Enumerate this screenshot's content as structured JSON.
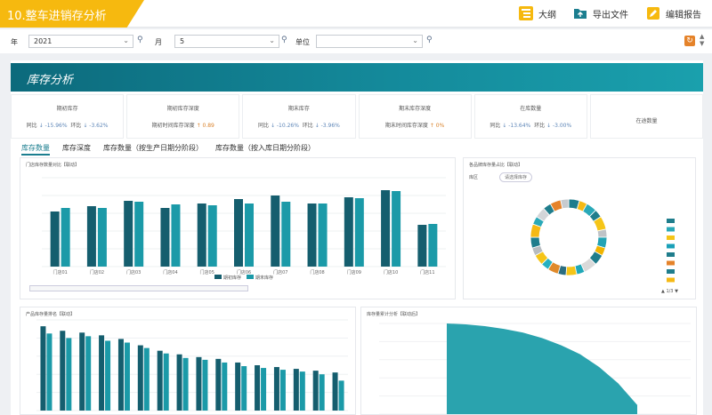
{
  "app": {
    "title": "10.整车进销存分析"
  },
  "toolbar": {
    "outline": "大纲",
    "export": "导出文件",
    "edit_report": "编辑报告"
  },
  "filters": {
    "year_label": "年",
    "year_value": "2021",
    "month_label": "月",
    "month_value": "5",
    "unit_label": "单位",
    "unit_value": ""
  },
  "section": {
    "title": "库存分析"
  },
  "kpis": [
    {
      "title": "期初库存",
      "yoy_label": "同比",
      "yoy": "↓ -15.96%",
      "mom_label": "环比",
      "mom": "↓ -3.62%"
    },
    {
      "title": "期初库存深度",
      "sub_label": "期初时间库存深度",
      "sub_value": "↑ 0.89"
    },
    {
      "title": "期末库存",
      "yoy_label": "同比",
      "yoy": "↓ -10.26%",
      "mom_label": "环比",
      "mom": "↓ -3.96%"
    },
    {
      "title": "期末库存深度",
      "sub_label": "期末时间库存深度",
      "sub_value": "↑ 0%"
    },
    {
      "title": "在库数量",
      "yoy_label": "同比",
      "yoy": "↓ -13.64%",
      "mom_label": "环比",
      "mom": "↓ -3.00%"
    },
    {
      "title": "在途数量"
    }
  ],
  "tabs": [
    "库存数量",
    "库存深度",
    "库存数量（按生产日期分阶段）",
    "库存数量（按入库日期分阶段）"
  ],
  "cards": {
    "store_bar": {
      "title": "门店库存数量对比【联动】"
    },
    "donut": {
      "title": "各品牌库存量占比【联动】",
      "filter_label": "库区",
      "filter_value": "请选择库存",
      "page": "1/3"
    },
    "product_bar": {
      "title": "产品库存量排名【联动】"
    },
    "area": {
      "title": "库存量累计分析【联动后】"
    }
  },
  "chart_data": [
    {
      "type": "bar",
      "title": "门店库存数量对比【联动】",
      "categories": [
        "门店01",
        "门店02",
        "门店03",
        "门店04",
        "门店05",
        "门店06",
        "门店07",
        "门店08",
        "门店09",
        "门店10",
        "门店11"
      ],
      "series": [
        {
          "name": "期初库存",
          "values": [
            62,
            68,
            74,
            66,
            71,
            76,
            80,
            71,
            78,
            86,
            47
          ]
        },
        {
          "name": "期末库存",
          "values": [
            66,
            66,
            73,
            70,
            69,
            71,
            73,
            71,
            77,
            85,
            48
          ]
        }
      ],
      "ylim": [
        0,
        100
      ]
    },
    {
      "type": "pie",
      "title": "各品牌库存量占比【联动】",
      "slices": [
        {
          "value": 4,
          "color": "#1f7d8c"
        },
        {
          "value": 3,
          "color": "#f5b914"
        },
        {
          "value": 4,
          "color": "#2aa9b8"
        },
        {
          "value": 3,
          "color": "#1f7d8c"
        },
        {
          "value": 5,
          "color": "#f5c518"
        },
        {
          "value": 3,
          "color": "#bfc3c7"
        },
        {
          "value": 4,
          "color": "#23a3b4"
        },
        {
          "value": 3,
          "color": "#f0b400"
        },
        {
          "value": 4,
          "color": "#1f7d8c"
        },
        {
          "value": 5,
          "color": "#d9d9d9"
        },
        {
          "value": 3,
          "color": "#20a8b8"
        },
        {
          "value": 4,
          "color": "#f5c518"
        },
        {
          "value": 3,
          "color": "#2c6e80"
        },
        {
          "value": 4,
          "color": "#e08a2b"
        },
        {
          "value": 3,
          "color": "#26b0c0"
        },
        {
          "value": 4,
          "color": "#f5c518"
        },
        {
          "value": 3,
          "color": "#b7bcc0"
        },
        {
          "value": 4,
          "color": "#1f7d8c"
        },
        {
          "value": 5,
          "color": "#f5b914"
        },
        {
          "value": 3,
          "color": "#2aa9b8"
        },
        {
          "value": 4,
          "color": "#d2d5d8"
        },
        {
          "value": 3,
          "color": "#1f7d8c"
        },
        {
          "value": 4,
          "color": "#e5832a"
        },
        {
          "value": 3,
          "color": "#c7cbcf"
        }
      ],
      "legend_colors": [
        "#1f7d8c",
        "#2aa9b8",
        "#f5c518",
        "#1aa0b8",
        "#1f7d8c",
        "#e5832a",
        "#1f7d8c",
        "#f5b914"
      ]
    },
    {
      "type": "bar",
      "title": "产品库存量排名【联动】",
      "series": [
        {
          "name": "期初库存",
          "values": [
            93,
            88,
            86,
            83,
            79,
            72,
            66,
            62,
            59,
            57,
            53,
            50,
            48,
            46,
            44,
            42
          ]
        },
        {
          "name": "期末库存",
          "values": [
            85,
            80,
            82,
            77,
            75,
            69,
            63,
            58,
            56,
            53,
            49,
            47,
            45,
            43,
            40,
            33
          ]
        }
      ],
      "ylim": [
        0,
        100
      ]
    },
    {
      "type": "area",
      "title": "库存量累计分析【联动后】",
      "x": [
        0,
        10,
        20,
        30,
        40,
        50,
        60,
        70,
        80,
        90,
        100
      ],
      "values": [
        100,
        99,
        97,
        94,
        90,
        84,
        76,
        66,
        52,
        34,
        10
      ],
      "ylim": [
        0,
        100
      ]
    }
  ]
}
